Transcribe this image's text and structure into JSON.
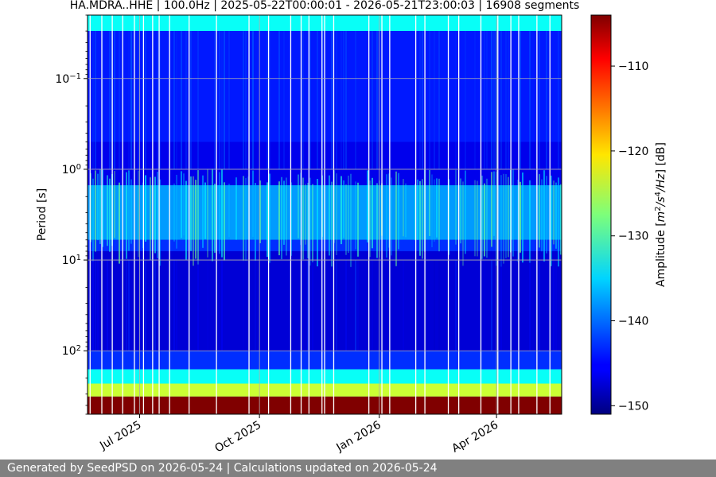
{
  "chart_data": {
    "type": "heatmap",
    "title": "HA.MDRA..HHE | 100.0Hz | 2025-05-22T00:00:01 - 2026-05-21T23:00:03 | 16908 segments",
    "xlabel": "",
    "ylabel": "Period [s]",
    "x_range": [
      "2025-05-22",
      "2026-05-21"
    ],
    "x_ticks": [
      {
        "date": "2025-07-01",
        "label": "Jul 2025"
      },
      {
        "date": "2025-10-01",
        "label": "Oct 2025"
      },
      {
        "date": "2026-01-01",
        "label": "Jan 2026"
      },
      {
        "date": "2026-04-01",
        "label": "Apr 2026"
      }
    ],
    "y_scale": "log",
    "y_inverted": true,
    "y_range": [
      0.02,
      500
    ],
    "y_ticks": [
      {
        "value": 0.1,
        "base": "10",
        "exp": "−1"
      },
      {
        "value": 1,
        "base": "10",
        "exp": "0"
      },
      {
        "value": 10,
        "base": "10",
        "exp": "1"
      },
      {
        "value": 100,
        "base": "10",
        "exp": "2"
      }
    ],
    "grid": true,
    "colormap": "jet",
    "colorbar": {
      "label_prefix": "Amplitude [",
      "label_unit": "m",
      "label_exp1": "2",
      "label_mid": "/s",
      "label_exp2": "4",
      "label_div": "/",
      "label_hz": "Hz",
      "label_suffix": "] [dB]",
      "range": [
        -151,
        -104
      ],
      "ticks": [
        {
          "value": -110,
          "label": "−110"
        },
        {
          "value": -120,
          "label": "−120"
        },
        {
          "value": -130,
          "label": "−130"
        },
        {
          "value": -140,
          "label": "−140"
        },
        {
          "value": -150,
          "label": "−150"
        }
      ]
    },
    "bands": [
      {
        "period_range": [
          0.02,
          0.03
        ],
        "db": -133
      },
      {
        "period_range": [
          0.03,
          0.5
        ],
        "db": -144
      },
      {
        "period_range": [
          0.5,
          1.5
        ],
        "db": -146
      },
      {
        "period_range": [
          1.5,
          6
        ],
        "db": -138
      },
      {
        "period_range": [
          6,
          8
        ],
        "db": -143
      },
      {
        "period_range": [
          8,
          100
        ],
        "db": -147
      },
      {
        "period_range": [
          100,
          160
        ],
        "db": -143
      },
      {
        "period_range": [
          160,
          230
        ],
        "db": -133
      },
      {
        "period_range": [
          230,
          320
        ],
        "db": -124
      },
      {
        "period_range": [
          320,
          500
        ],
        "db": -104
      }
    ],
    "data_gaps": [
      "2025-05-24",
      "2025-06-02",
      "2025-06-10",
      "2025-06-18",
      "2025-06-27",
      "2025-07-04",
      "2025-07-11",
      "2025-07-16",
      "2025-07-24",
      "2025-08-08",
      "2025-08-29",
      "2025-09-23",
      "2025-10-08",
      "2025-10-25",
      "2025-11-02",
      "2025-11-08",
      "2025-11-18",
      "2025-11-20",
      "2025-11-27",
      "2025-12-24",
      "2026-01-03",
      "2026-01-09",
      "2026-01-29",
      "2026-02-05",
      "2026-02-23",
      "2026-03-03",
      "2026-03-20",
      "2026-04-02",
      "2026-04-12",
      "2026-04-18",
      "2026-05-02",
      "2026-05-12"
    ]
  },
  "footer": {
    "text": "Generated by SeedPSD on 2026-05-24 | Calculations updated on 2026-05-24"
  }
}
